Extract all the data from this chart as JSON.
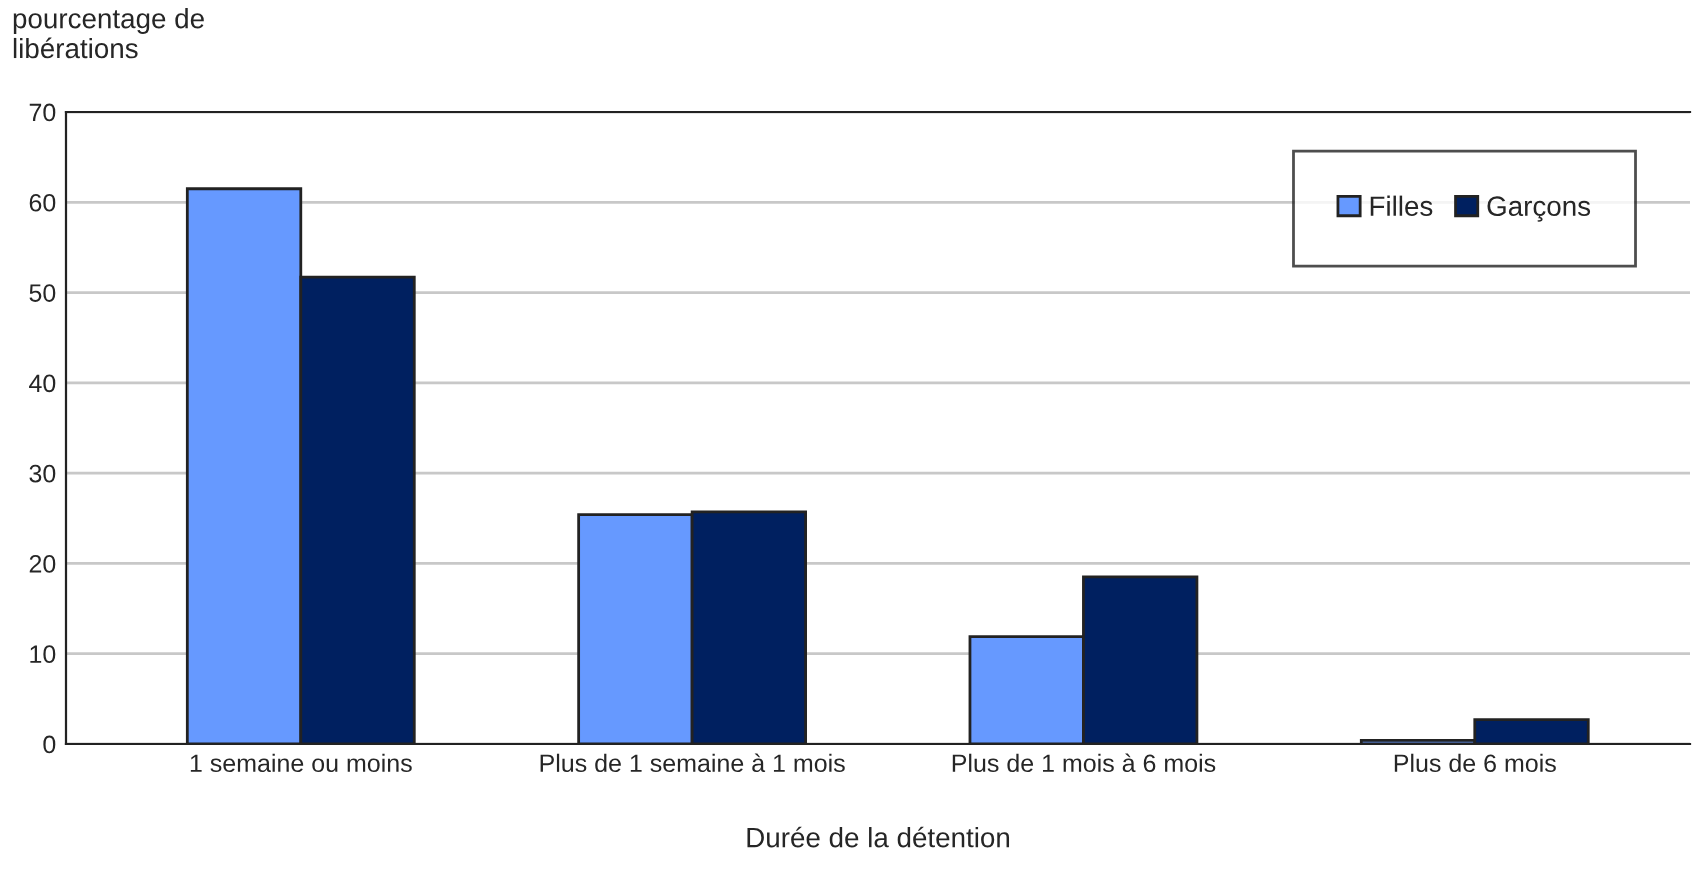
{
  "chart_data": {
    "type": "bar",
    "ylabel": "pourcentage de\nlibérations",
    "xlabel": "Durée de la détention",
    "categories": [
      "1 semaine ou moins",
      "Plus de 1 semaine à 1 mois",
      "Plus de 1 mois à 6 mois",
      "Plus de 6 mois"
    ],
    "series": [
      {
        "name": "Filles",
        "color": "#6699ff",
        "values": [
          61.5,
          25.4,
          11.9,
          0.4
        ]
      },
      {
        "name": "Garçons",
        "color": "#002060",
        "values": [
          51.7,
          25.7,
          18.5,
          2.7
        ]
      }
    ],
    "ylim": [
      0,
      70
    ],
    "yticks": [
      0,
      10,
      20,
      30,
      40,
      50,
      60,
      70
    ],
    "grid": "y",
    "legend": "top right"
  }
}
